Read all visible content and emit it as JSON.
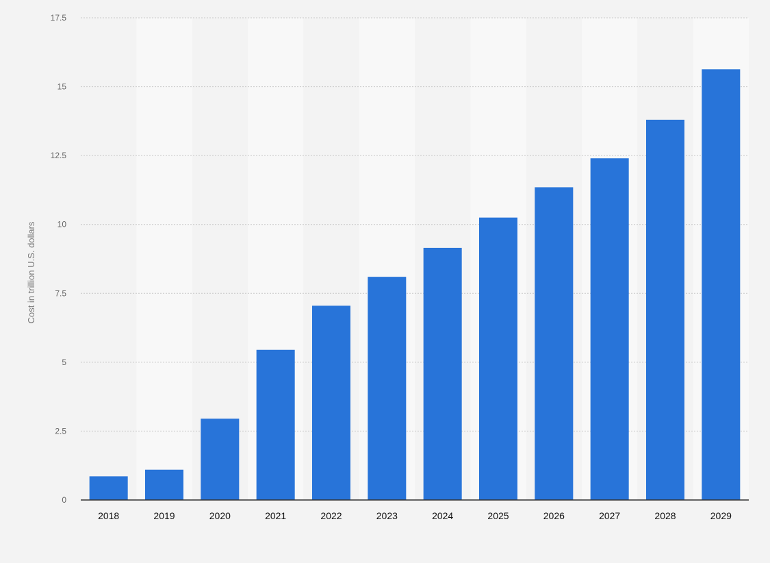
{
  "chart_data": {
    "type": "bar",
    "categories": [
      "2018",
      "2019",
      "2020",
      "2021",
      "2022",
      "2023",
      "2024",
      "2025",
      "2026",
      "2027",
      "2028",
      "2029"
    ],
    "values": [
      0.86,
      1.1,
      2.95,
      5.45,
      7.05,
      8.1,
      9.15,
      10.25,
      11.35,
      12.4,
      13.8,
      15.63
    ],
    "title": "",
    "xlabel": "",
    "ylabel": "Cost in trillion U.S. dollars",
    "ylim": [
      0,
      17.5
    ],
    "yticks": [
      "0",
      "2.5",
      "5",
      "7.5",
      "10",
      "12.5",
      "15",
      "17.5"
    ],
    "grid": true,
    "legend": "none",
    "bar_color": "#2874d9"
  }
}
